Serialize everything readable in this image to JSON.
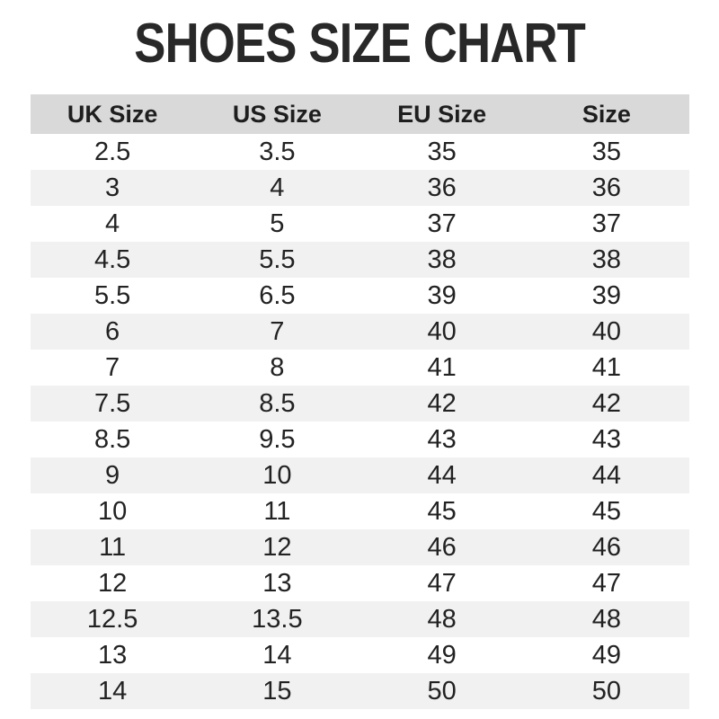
{
  "page": {
    "title": "SHOES SIZE CHART"
  },
  "colors": {
    "header_bg": "#d9d9d9",
    "alt_row_bg": "#f1f1f1",
    "row_bg": "#ffffff",
    "text": "#222222",
    "title": "#282828"
  },
  "table": {
    "headers": [
      "UK Size",
      "US Size",
      "EU Size",
      "Size"
    ],
    "rows": [
      [
        "2.5",
        "3.5",
        "35",
        "35"
      ],
      [
        "3",
        "4",
        "36",
        "36"
      ],
      [
        "4",
        "5",
        "37",
        "37"
      ],
      [
        "4.5",
        "5.5",
        "38",
        "38"
      ],
      [
        "5.5",
        "6.5",
        "39",
        "39"
      ],
      [
        "6",
        "7",
        "40",
        "40"
      ],
      [
        "7",
        "8",
        "41",
        "41"
      ],
      [
        "7.5",
        "8.5",
        "42",
        "42"
      ],
      [
        "8.5",
        "9.5",
        "43",
        "43"
      ],
      [
        "9",
        "10",
        "44",
        "44"
      ],
      [
        "10",
        "11",
        "45",
        "45"
      ],
      [
        "11",
        "12",
        "46",
        "46"
      ],
      [
        "12",
        "13",
        "47",
        "47"
      ],
      [
        "12.5",
        "13.5",
        "48",
        "48"
      ],
      [
        "13",
        "14",
        "49",
        "49"
      ],
      [
        "14",
        "15",
        "50",
        "50"
      ]
    ]
  },
  "chart_data": {
    "type": "table",
    "title": "SHOES SIZE CHART",
    "columns": [
      "UK Size",
      "US Size",
      "EU Size",
      "Size"
    ],
    "rows": [
      [
        "2.5",
        "3.5",
        "35",
        "35"
      ],
      [
        "3",
        "4",
        "36",
        "36"
      ],
      [
        "4",
        "5",
        "37",
        "37"
      ],
      [
        "4.5",
        "5.5",
        "38",
        "38"
      ],
      [
        "5.5",
        "6.5",
        "39",
        "39"
      ],
      [
        "6",
        "7",
        "40",
        "40"
      ],
      [
        "7",
        "8",
        "41",
        "41"
      ],
      [
        "7.5",
        "8.5",
        "42",
        "42"
      ],
      [
        "8.5",
        "9.5",
        "43",
        "43"
      ],
      [
        "9",
        "10",
        "44",
        "44"
      ],
      [
        "10",
        "11",
        "45",
        "45"
      ],
      [
        "11",
        "12",
        "46",
        "46"
      ],
      [
        "12",
        "13",
        "47",
        "47"
      ],
      [
        "12.5",
        "13.5",
        "48",
        "48"
      ],
      [
        "13",
        "14",
        "49",
        "49"
      ],
      [
        "14",
        "15",
        "50",
        "50"
      ]
    ],
    "layout": {
      "header_background": "#d9d9d9",
      "zebra_striping": true,
      "column_alignment": "center"
    }
  }
}
